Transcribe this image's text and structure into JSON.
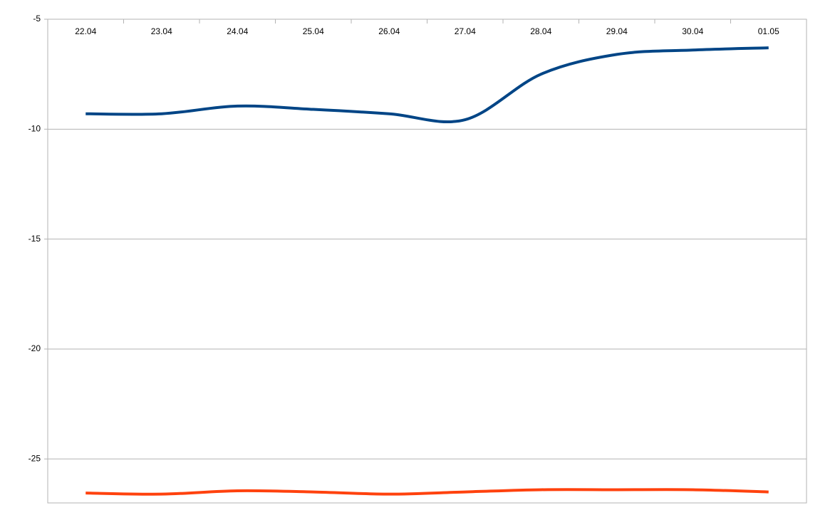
{
  "chart_data": {
    "type": "line",
    "categories": [
      "22.04",
      "23.04",
      "24.04",
      "25.04",
      "26.04",
      "27.04",
      "28.04",
      "29.04",
      "30.04",
      "01.05"
    ],
    "series": [
      {
        "color": "#004586",
        "values": [
          -9.3,
          -9.3,
          -8.95,
          -9.1,
          -9.3,
          -9.57,
          -7.5,
          -6.6,
          -6.4,
          -6.3
        ]
      },
      {
        "color": "#ff420e",
        "values": [
          -26.55,
          -26.6,
          -26.45,
          -26.5,
          -26.6,
          -26.5,
          -26.4,
          -26.4,
          -26.4,
          -26.5
        ]
      }
    ],
    "ylim": [
      -27,
      -5
    ],
    "yticks": [
      -5,
      -10,
      -15,
      -20,
      -25
    ],
    "grid": true,
    "smooth": true
  }
}
